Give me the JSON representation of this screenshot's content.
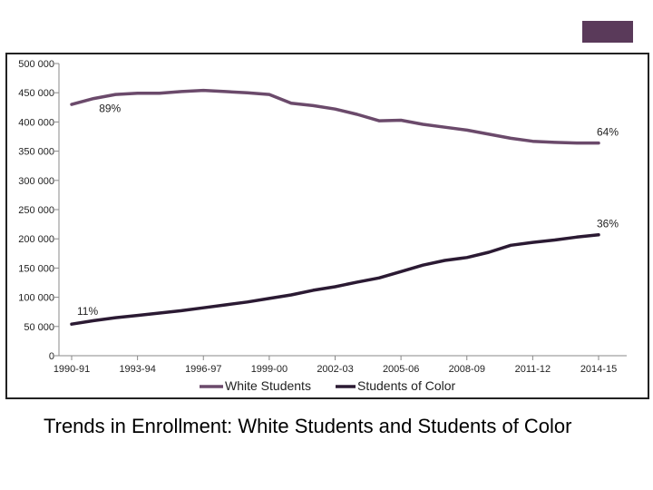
{
  "slide": {
    "caption": "Trends in Enrollment:   White Students and Students of Color",
    "accent_color": "#5a3a5a"
  },
  "chart_data": {
    "type": "line",
    "title": "",
    "xlabel": "",
    "ylabel": "",
    "ylim": [
      0,
      500000
    ],
    "y_ticks": [
      "0",
      "50 000",
      "100 000",
      "150 000",
      "200 000",
      "250 000",
      "300 000",
      "350 000",
      "400 000",
      "450 000",
      "500 000"
    ],
    "categories": [
      "1990-91",
      "1991-92",
      "1992-93",
      "1993-94",
      "1994-95",
      "1995-96",
      "1996-97",
      "1997-98",
      "1998-99",
      "1999-00",
      "2000-01",
      "2001-02",
      "2002-03",
      "2003-04",
      "2004-05",
      "2005-06",
      "2006-07",
      "2007-08",
      "2008-09",
      "2009-10",
      "2010-11",
      "2011-12",
      "2012-13",
      "2013-14",
      "2014-15"
    ],
    "x_tick_labels": [
      "1990-91",
      "1993-94",
      "1996-97",
      "1999-00",
      "2002-03",
      "2005-06",
      "2008-09",
      "2011-12",
      "2014-15"
    ],
    "grid": false,
    "legend_position": "bottom",
    "series": [
      {
        "name": "White Students",
        "color": "#6b4a6b",
        "values": [
          430000,
          440000,
          447000,
          449000,
          449000,
          452000,
          454000,
          452000,
          450000,
          447000,
          432000,
          428000,
          422000,
          413000,
          402000,
          403000,
          396000,
          391000,
          386000,
          379000,
          372000,
          367000,
          365000,
          364000,
          364000
        ]
      },
      {
        "name": "Students of Color",
        "color": "#2b1a33",
        "values": [
          54000,
          60000,
          65000,
          69000,
          73000,
          77000,
          82000,
          87000,
          92000,
          98000,
          104000,
          112000,
          118000,
          126000,
          133000,
          144000,
          155000,
          163000,
          168000,
          177000,
          189000,
          194000,
          198000,
          203000,
          207000
        ]
      }
    ],
    "annotations": [
      {
        "text": "89%",
        "series": 0,
        "index": 1,
        "anchor": "start"
      },
      {
        "text": "64%",
        "series": 0,
        "index": 24,
        "anchor": "end"
      },
      {
        "text": "36%",
        "series": 1,
        "index": 24,
        "anchor": "end"
      },
      {
        "text": "11%",
        "series": 1,
        "index": 0,
        "anchor": "start"
      }
    ]
  }
}
